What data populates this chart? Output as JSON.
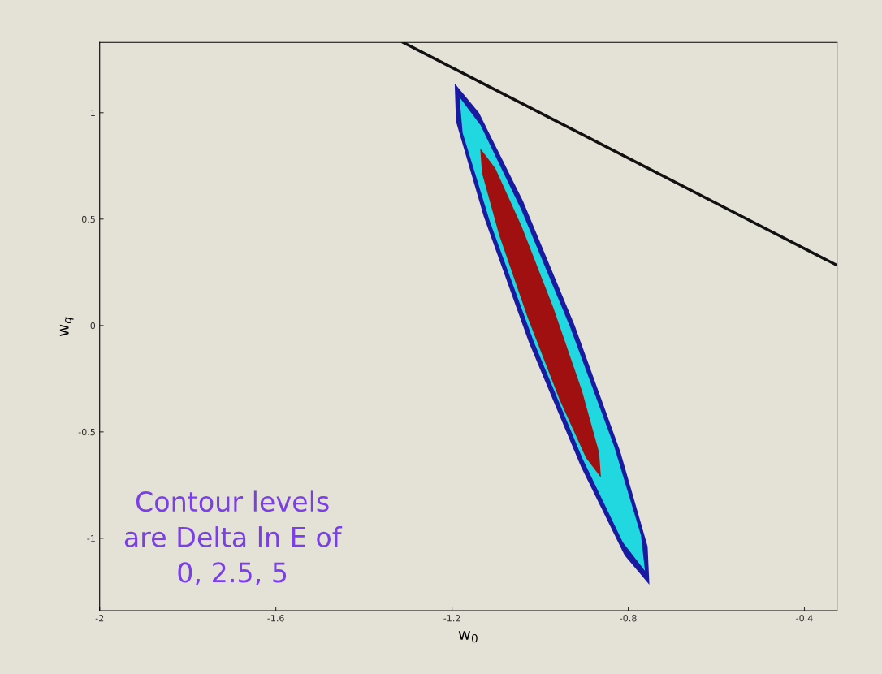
{
  "chart_data": {
    "type": "area",
    "xlabel": "w$_{0}$",
    "ylabel": "w$_{q}$",
    "xlim": [
      -2,
      -0.326
    ],
    "ylim": [
      -1.34,
      1.33
    ],
    "xticks": [
      -2,
      -1.6,
      -1.2,
      -0.8,
      -0.4
    ],
    "yticks": [
      -1,
      -0.5,
      0,
      0.5,
      1
    ],
    "grid": false,
    "series": [
      {
        "color": "#1a1aa0",
        "x": [
          -1.194,
          -1.139,
          -1.039,
          -0.922,
          -0.818,
          -0.756,
          -0.752,
          -0.808,
          -0.907,
          -1.025,
          -1.128,
          -1.191
        ],
        "values": [
          1.137,
          1.0,
          0.585,
          0.002,
          -0.593,
          -1.039,
          -1.218,
          -1.081,
          -0.665,
          -0.082,
          0.513,
          0.959
        ]
      },
      {
        "color": "#22d8e0",
        "x": [
          -1.183,
          -1.135,
          -1.043,
          -0.932,
          -0.832,
          -0.771,
          -0.762,
          -0.812,
          -0.904,
          -1.015,
          -1.114,
          -1.176
        ],
        "values": [
          1.073,
          0.94,
          0.545,
          -0.007,
          -0.568,
          -0.987,
          -1.153,
          -1.02,
          -0.625,
          -0.073,
          0.488,
          0.906
        ]
      },
      {
        "color": "#a01010",
        "x": [
          -1.136,
          -1.102,
          -1.042,
          -0.97,
          -0.905,
          -0.866,
          -0.862,
          -0.896,
          -0.956,
          -1.028,
          -1.093,
          -1.132
        ],
        "values": [
          0.832,
          0.74,
          0.466,
          0.083,
          -0.307,
          -0.598,
          -0.714,
          -0.622,
          -0.348,
          0.036,
          0.425,
          0.717
        ]
      },
      {
        "type": "line",
        "color": "#111111",
        "x": [
          -1.311,
          -0.326
        ],
        "values": [
          1.33,
          0.283
        ],
        "line_style": "solid"
      }
    ],
    "annotations": [
      "Contour levels\nare Delta ln E of\n0, 2.5, 5"
    ]
  }
}
